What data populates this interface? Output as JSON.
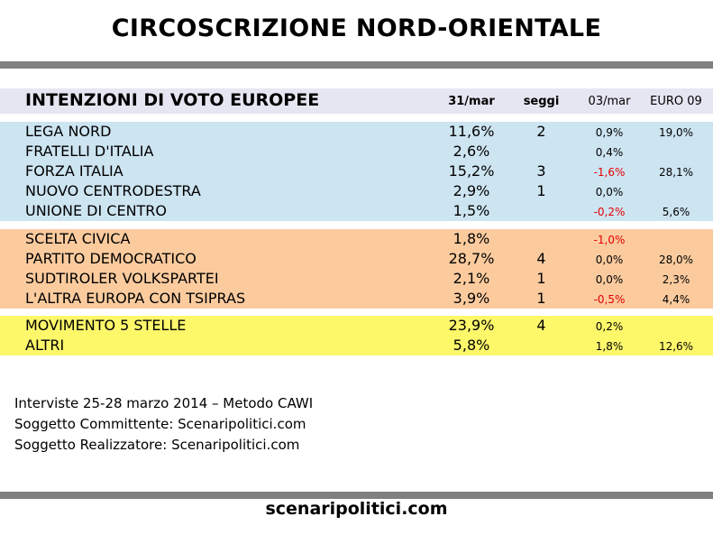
{
  "title": "CIRCOSCRIZIONE NORD-ORIENTALE",
  "chart_data": {
    "type": "table",
    "title": "INTENZIONI DI VOTO EUROPEE",
    "columns": [
      "31/mar",
      "seggi",
      "03/mar",
      "EURO 09"
    ],
    "groups": [
      {
        "color": "#cde4f1",
        "rows": [
          {
            "party": "LEGA NORD",
            "vote": "11,6%",
            "seats": "2",
            "delta": "0,9%",
            "euro09": "19,0%"
          },
          {
            "party": "FRATELLI D'ITALIA",
            "vote": "2,6%",
            "seats": "",
            "delta": "0,4%",
            "euro09": ""
          },
          {
            "party": "FORZA ITALIA",
            "vote": "15,2%",
            "seats": "3",
            "delta": "-1,6%",
            "euro09": "28,1%"
          },
          {
            "party": "NUOVO CENTRODESTRA",
            "vote": "2,9%",
            "seats": "1",
            "delta": "0,0%",
            "euro09": ""
          },
          {
            "party": "UNIONE DI CENTRO",
            "vote": "1,5%",
            "seats": "",
            "delta": "-0,2%",
            "euro09": "5,6%"
          }
        ]
      },
      {
        "color": "#fbcb9e",
        "rows": [
          {
            "party": "SCELTA CIVICA",
            "vote": "1,8%",
            "seats": "",
            "delta": "-1,0%",
            "euro09": ""
          },
          {
            "party": "PARTITO DEMOCRATICO",
            "vote": "28,7%",
            "seats": "4",
            "delta": "0,0%",
            "euro09": "28,0%"
          },
          {
            "party": "SUDTIROLER VOLKSPARTEI",
            "vote": "2,1%",
            "seats": "1",
            "delta": "0,0%",
            "euro09": "2,3%"
          },
          {
            "party": "L'ALTRA EUROPA CON TSIPRAS",
            "vote": "3,9%",
            "seats": "1",
            "delta": "-0,5%",
            "euro09": "4,4%"
          }
        ]
      },
      {
        "color": "#fdf76a",
        "rows": [
          {
            "party": "MOVIMENTO 5 STELLE",
            "vote": "23,9%",
            "seats": "4",
            "delta": "0,2%",
            "euro09": ""
          },
          {
            "party": "ALTRI",
            "vote": "5,8%",
            "seats": "",
            "delta": "1,8%",
            "euro09": "12,6%"
          }
        ]
      }
    ]
  },
  "notes": [
    "Interviste 25-28 marzo 2014 – Metodo CAWI",
    "Soggetto Committente: Scenaripolitici.com",
    "Soggetto Realizzatore: Scenaripolitici.com"
  ],
  "footer": "scenaripolitici.com",
  "colors": {
    "rule": "#808080",
    "header_bg": "#e6e6f2",
    "negative": "#e60000"
  }
}
